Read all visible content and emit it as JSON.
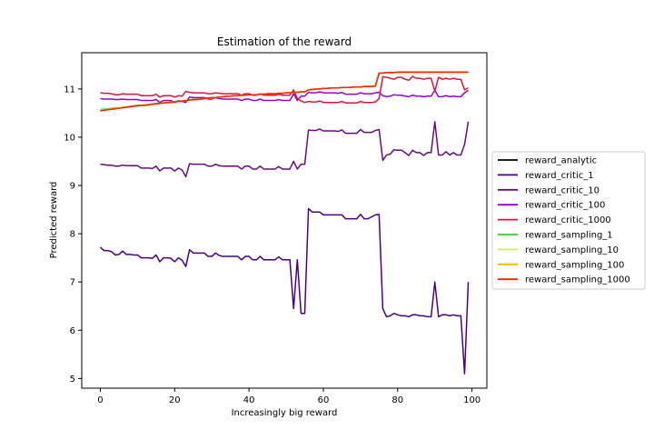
{
  "chart_data": {
    "type": "line",
    "title": "Estimation of the reward",
    "xlabel": "Increasingly big reward",
    "ylabel": "Predicted reward",
    "xlim": [
      -5,
      104
    ],
    "ylim": [
      4.8,
      11.75
    ],
    "xticks": [
      0,
      20,
      40,
      60,
      80,
      100
    ],
    "yticks": [
      5,
      6,
      7,
      8,
      9,
      10,
      11
    ],
    "grid": false,
    "legend_position": "right-outside",
    "x": [
      0,
      1,
      2,
      3,
      4,
      5,
      6,
      7,
      8,
      9,
      10,
      11,
      12,
      13,
      14,
      15,
      16,
      17,
      18,
      19,
      20,
      21,
      22,
      23,
      24,
      25,
      26,
      27,
      28,
      29,
      30,
      31,
      32,
      33,
      34,
      35,
      36,
      37,
      38,
      39,
      40,
      41,
      42,
      43,
      44,
      45,
      46,
      47,
      48,
      49,
      50,
      51,
      52,
      53,
      54,
      55,
      56,
      57,
      58,
      59,
      60,
      61,
      62,
      63,
      64,
      65,
      66,
      67,
      68,
      69,
      70,
      71,
      72,
      73,
      74,
      75,
      76,
      77,
      78,
      79,
      80,
      81,
      82,
      83,
      84,
      85,
      86,
      87,
      88,
      89,
      90,
      91,
      92,
      93,
      94,
      95,
      96,
      97,
      98,
      99
    ],
    "series": [
      {
        "name": "reward_analytic",
        "color": "#000000",
        "values": [
          10.55,
          10.56,
          10.57,
          10.58,
          10.59,
          10.6,
          10.61,
          10.62,
          10.63,
          10.64,
          10.65,
          10.66,
          10.66,
          10.67,
          10.68,
          10.69,
          10.7,
          10.71,
          10.72,
          10.72,
          10.73,
          10.74,
          10.75,
          10.76,
          10.77,
          10.78,
          10.78,
          10.79,
          10.8,
          10.81,
          10.82,
          10.82,
          10.83,
          10.84,
          10.85,
          10.85,
          10.86,
          10.86,
          10.87,
          10.87,
          10.88,
          10.88,
          10.88,
          10.89,
          10.89,
          10.9,
          10.9,
          10.9,
          10.91,
          10.91,
          10.92,
          10.92,
          10.93,
          10.93,
          10.94,
          10.94,
          10.98,
          10.99,
          11.0,
          11.0,
          11.01,
          11.01,
          11.02,
          11.02,
          11.02,
          11.03,
          11.03,
          11.03,
          11.04,
          11.04,
          11.04,
          11.05,
          11.05,
          11.05,
          11.06,
          11.32,
          11.33,
          11.33,
          11.33,
          11.34,
          11.34,
          11.34,
          11.34,
          11.34,
          11.34,
          11.34,
          11.34,
          11.34,
          11.34,
          11.34,
          11.34,
          11.34,
          11.34,
          11.34,
          11.34,
          11.34,
          11.34,
          11.34,
          11.34,
          11.34
        ]
      },
      {
        "name": "reward_critic_1",
        "color": "#4b0082",
        "values": [
          7.72,
          7.65,
          7.65,
          7.63,
          7.56,
          7.57,
          7.64,
          7.57,
          7.57,
          7.56,
          7.56,
          7.5,
          7.5,
          7.5,
          7.49,
          7.56,
          7.42,
          7.5,
          7.5,
          7.49,
          7.42,
          7.5,
          7.45,
          7.32,
          7.67,
          7.6,
          7.6,
          7.6,
          7.6,
          7.53,
          7.53,
          7.6,
          7.55,
          7.53,
          7.53,
          7.53,
          7.53,
          7.53,
          7.46,
          7.53,
          7.53,
          7.46,
          7.46,
          7.53,
          7.46,
          7.46,
          7.46,
          7.46,
          7.52,
          7.46,
          7.46,
          7.46,
          6.45,
          7.46,
          6.35,
          6.35,
          8.52,
          8.45,
          8.45,
          8.45,
          8.39,
          8.39,
          8.39,
          8.39,
          8.39,
          8.39,
          8.31,
          8.31,
          8.31,
          8.31,
          8.4,
          8.31,
          8.31,
          8.35,
          8.39,
          8.4,
          6.45,
          6.28,
          6.3,
          6.35,
          6.32,
          6.3,
          6.3,
          6.28,
          6.32,
          6.32,
          6.3,
          6.3,
          6.28,
          6.28,
          7.0,
          6.28,
          6.32,
          6.32,
          6.3,
          6.32,
          6.3,
          6.3,
          5.1,
          7.0
        ]
      },
      {
        "name": "reward_critic_10",
        "color": "#6a0a82",
        "values": [
          9.44,
          9.43,
          9.42,
          9.42,
          9.4,
          9.4,
          9.42,
          9.41,
          9.41,
          9.41,
          9.41,
          9.36,
          9.36,
          9.36,
          9.35,
          9.4,
          9.3,
          9.36,
          9.36,
          9.36,
          9.3,
          9.36,
          9.32,
          9.18,
          9.45,
          9.44,
          9.44,
          9.44,
          9.44,
          9.4,
          9.4,
          9.44,
          9.41,
          9.4,
          9.4,
          9.4,
          9.4,
          9.4,
          9.34,
          9.4,
          9.4,
          9.34,
          9.34,
          9.4,
          9.34,
          9.34,
          9.34,
          9.34,
          9.39,
          9.34,
          9.34,
          9.34,
          9.5,
          9.34,
          9.44,
          9.44,
          10.15,
          10.14,
          10.14,
          10.17,
          10.13,
          10.13,
          10.13,
          10.13,
          10.12,
          10.15,
          10.08,
          10.08,
          10.08,
          10.08,
          10.16,
          10.1,
          10.1,
          10.1,
          10.14,
          10.16,
          9.52,
          9.63,
          9.65,
          9.74,
          9.73,
          9.73,
          9.68,
          9.62,
          9.73,
          9.68,
          9.68,
          9.62,
          9.68,
          9.68,
          10.32,
          9.63,
          9.63,
          9.7,
          9.63,
          9.68,
          9.63,
          9.63,
          9.85,
          10.32
        ]
      },
      {
        "name": "reward_critic_100",
        "color": "#9400d3",
        "values": [
          10.8,
          10.79,
          10.79,
          10.79,
          10.78,
          10.78,
          10.79,
          10.78,
          10.78,
          10.78,
          10.78,
          10.76,
          10.76,
          10.76,
          10.76,
          10.78,
          10.72,
          10.76,
          10.76,
          10.76,
          10.72,
          10.76,
          10.74,
          10.72,
          10.83,
          10.82,
          10.82,
          10.82,
          10.82,
          10.79,
          10.79,
          10.82,
          10.8,
          10.79,
          10.79,
          10.79,
          10.79,
          10.79,
          10.76,
          10.79,
          10.79,
          10.76,
          10.76,
          10.79,
          10.76,
          10.76,
          10.76,
          10.76,
          10.78,
          10.76,
          10.76,
          10.76,
          10.9,
          10.76,
          10.85,
          10.85,
          10.93,
          10.92,
          10.92,
          10.94,
          10.92,
          10.92,
          10.92,
          10.92,
          10.91,
          10.93,
          10.89,
          10.89,
          10.89,
          10.89,
          10.92,
          10.9,
          10.9,
          10.9,
          10.92,
          10.93,
          10.86,
          10.84,
          10.85,
          10.88,
          10.87,
          10.87,
          10.85,
          10.84,
          10.87,
          10.85,
          10.85,
          10.84,
          10.85,
          10.85,
          10.97,
          10.84,
          10.84,
          10.86,
          10.84,
          10.85,
          10.84,
          10.84,
          10.92,
          10.97
        ]
      },
      {
        "name": "reward_critic_1000",
        "color": "#dc143c",
        "values": [
          10.92,
          10.91,
          10.91,
          10.9,
          10.88,
          10.88,
          10.9,
          10.89,
          10.89,
          10.89,
          10.89,
          10.86,
          10.86,
          10.86,
          10.86,
          10.89,
          10.83,
          10.86,
          10.86,
          10.86,
          10.83,
          10.86,
          10.85,
          10.95,
          10.93,
          10.92,
          10.92,
          10.92,
          10.92,
          10.9,
          10.9,
          10.92,
          10.91,
          10.9,
          10.9,
          10.9,
          10.9,
          10.9,
          10.87,
          10.9,
          10.9,
          10.87,
          10.87,
          10.9,
          10.87,
          10.87,
          10.87,
          10.87,
          10.89,
          10.87,
          10.87,
          10.87,
          10.98,
          10.8,
          10.75,
          10.72,
          10.74,
          10.73,
          10.73,
          10.75,
          10.72,
          10.72,
          10.72,
          10.72,
          10.72,
          10.74,
          10.71,
          10.71,
          10.71,
          10.71,
          10.74,
          10.72,
          10.72,
          10.72,
          10.73,
          10.8,
          11.25,
          11.24,
          11.22,
          11.2,
          11.24,
          11.24,
          11.2,
          11.18,
          11.26,
          11.22,
          11.22,
          11.2,
          11.22,
          11.22,
          10.95,
          11.24,
          11.2,
          11.22,
          11.2,
          11.22,
          11.2,
          11.2,
          10.98,
          11.02
        ]
      },
      {
        "name": "reward_sampling_1",
        "color": "#32cd32",
        "values": [
          10.57,
          10.58,
          10.59,
          10.6,
          10.61,
          10.61,
          10.62,
          10.63,
          10.64,
          10.65,
          10.66,
          10.66,
          10.67,
          10.68,
          10.69,
          10.7,
          10.71,
          10.71,
          10.72,
          10.73,
          10.74,
          10.75,
          10.75,
          10.76,
          10.77,
          10.78,
          10.79,
          10.79,
          10.8,
          10.81,
          10.82,
          10.82,
          10.83,
          10.84,
          10.85,
          10.85,
          10.86,
          10.86,
          10.87,
          10.87,
          10.88,
          10.88,
          10.88,
          10.89,
          10.89,
          10.9,
          10.9,
          10.9,
          10.91,
          10.91,
          10.92,
          10.92,
          10.93,
          10.93,
          10.94,
          10.94,
          10.98,
          10.99,
          11.0,
          11.0,
          11.01,
          11.01,
          11.02,
          11.02,
          11.02,
          11.03,
          11.03,
          11.03,
          11.04,
          11.04,
          11.04,
          11.05,
          11.05,
          11.05,
          11.06,
          11.32,
          11.33,
          11.33,
          11.33,
          11.34,
          11.34,
          11.34,
          11.34,
          11.34,
          11.34,
          11.34,
          11.34,
          11.34,
          11.34,
          11.34,
          11.34,
          11.34,
          11.34,
          11.34,
          11.34,
          11.34,
          11.34,
          11.34,
          11.34,
          11.34
        ]
      },
      {
        "name": "reward_sampling_10",
        "color": "#c8f060",
        "values": [
          10.56,
          10.57,
          10.58,
          10.59,
          10.6,
          10.61,
          10.62,
          10.63,
          10.63,
          10.64,
          10.65,
          10.66,
          10.66,
          10.67,
          10.68,
          10.69,
          10.7,
          10.71,
          10.72,
          10.72,
          10.73,
          10.74,
          10.75,
          10.76,
          10.77,
          10.78,
          10.78,
          10.79,
          10.8,
          10.81,
          10.82,
          10.82,
          10.83,
          10.84,
          10.85,
          10.85,
          10.86,
          10.86,
          10.87,
          10.87,
          10.88,
          10.88,
          10.88,
          10.89,
          10.89,
          10.9,
          10.9,
          10.9,
          10.91,
          10.91,
          10.92,
          10.92,
          10.93,
          10.93,
          10.94,
          10.94,
          10.98,
          10.99,
          11.0,
          11.0,
          11.01,
          11.01,
          11.02,
          11.02,
          11.02,
          11.03,
          11.03,
          11.03,
          11.04,
          11.04,
          11.04,
          11.05,
          11.05,
          11.05,
          11.06,
          11.32,
          11.33,
          11.33,
          11.33,
          11.34,
          11.34,
          11.34,
          11.34,
          11.34,
          11.34,
          11.34,
          11.34,
          11.34,
          11.34,
          11.34,
          11.34,
          11.34,
          11.34,
          11.34,
          11.34,
          11.34,
          11.34,
          11.34,
          11.34,
          11.34
        ]
      },
      {
        "name": "reward_sampling_100",
        "color": "#f5b800",
        "values": [
          10.54,
          10.56,
          10.57,
          10.58,
          10.59,
          10.6,
          10.61,
          10.62,
          10.63,
          10.64,
          10.65,
          10.65,
          10.66,
          10.67,
          10.68,
          10.69,
          10.7,
          10.71,
          10.71,
          10.72,
          10.73,
          10.74,
          10.75,
          10.76,
          10.77,
          10.77,
          10.78,
          10.79,
          10.8,
          10.81,
          10.81,
          10.82,
          10.83,
          10.84,
          10.84,
          10.85,
          10.85,
          10.86,
          10.86,
          10.87,
          10.87,
          10.88,
          10.88,
          10.89,
          10.89,
          10.9,
          10.9,
          10.9,
          10.91,
          10.91,
          10.92,
          10.92,
          10.93,
          10.93,
          10.94,
          10.94,
          10.98,
          10.99,
          11.0,
          11.0,
          11.01,
          11.01,
          11.02,
          11.02,
          11.02,
          11.03,
          11.03,
          11.03,
          11.04,
          11.04,
          11.04,
          11.05,
          11.05,
          11.05,
          11.06,
          11.32,
          11.33,
          11.33,
          11.33,
          11.34,
          11.34,
          11.34,
          11.34,
          11.34,
          11.34,
          11.34,
          11.34,
          11.34,
          11.34,
          11.34,
          11.34,
          11.34,
          11.34,
          11.34,
          11.34,
          11.34,
          11.34,
          11.34,
          11.34,
          11.34
        ]
      },
      {
        "name": "reward_sampling_1000",
        "color": "#ff2000",
        "values": [
          10.55,
          10.56,
          10.57,
          10.58,
          10.59,
          10.6,
          10.61,
          10.62,
          10.63,
          10.64,
          10.65,
          10.66,
          10.66,
          10.67,
          10.68,
          10.69,
          10.7,
          10.71,
          10.72,
          10.72,
          10.73,
          10.74,
          10.75,
          10.76,
          10.77,
          10.78,
          10.78,
          10.79,
          10.8,
          10.81,
          10.82,
          10.82,
          10.83,
          10.84,
          10.85,
          10.85,
          10.86,
          10.86,
          10.87,
          10.87,
          10.88,
          10.88,
          10.88,
          10.89,
          10.89,
          10.9,
          10.9,
          10.9,
          10.91,
          10.91,
          10.92,
          10.92,
          10.93,
          10.93,
          10.94,
          10.94,
          10.98,
          10.99,
          11.0,
          11.0,
          11.01,
          11.01,
          11.02,
          11.02,
          11.02,
          11.03,
          11.03,
          11.03,
          11.04,
          11.04,
          11.04,
          11.05,
          11.05,
          11.05,
          11.06,
          11.33,
          11.33,
          11.34,
          11.34,
          11.34,
          11.35,
          11.35,
          11.35,
          11.35,
          11.35,
          11.35,
          11.35,
          11.35,
          11.35,
          11.35,
          11.35,
          11.35,
          11.35,
          11.35,
          11.35,
          11.35,
          11.35,
          11.35,
          11.35,
          11.35
        ]
      }
    ]
  }
}
